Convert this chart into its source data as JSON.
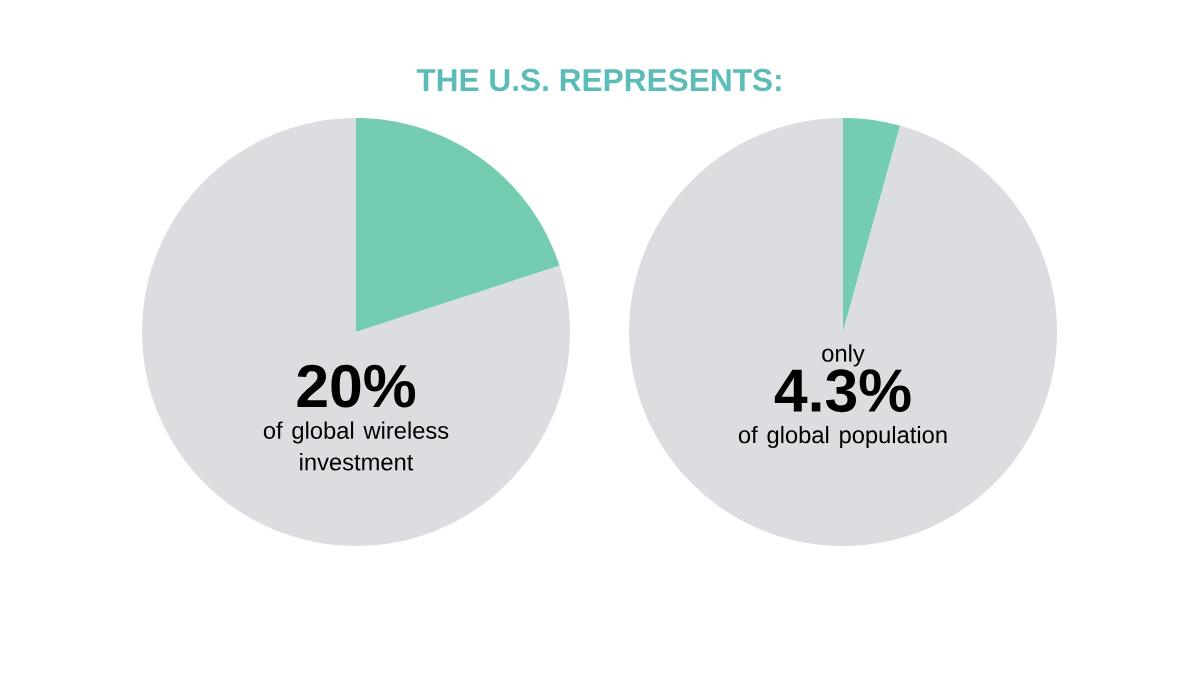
{
  "chart_data": [
    {
      "type": "pie",
      "title": "THE U.S. REPRESENTS:",
      "categories": [
        null,
        null
      ],
      "values": [
        20,
        80
      ],
      "colors": [
        "#74cdb3",
        "#dcdde1"
      ],
      "annotations": [
        "20%",
        "of global wireless investment"
      ]
    },
    {
      "type": "pie",
      "categories": [
        null,
        null
      ],
      "values": [
        4.3,
        95.7
      ],
      "colors": [
        "#74cdb3",
        "#dcdde1"
      ],
      "annotations": [
        "only",
        "4.3%",
        "of global population"
      ]
    }
  ]
}
